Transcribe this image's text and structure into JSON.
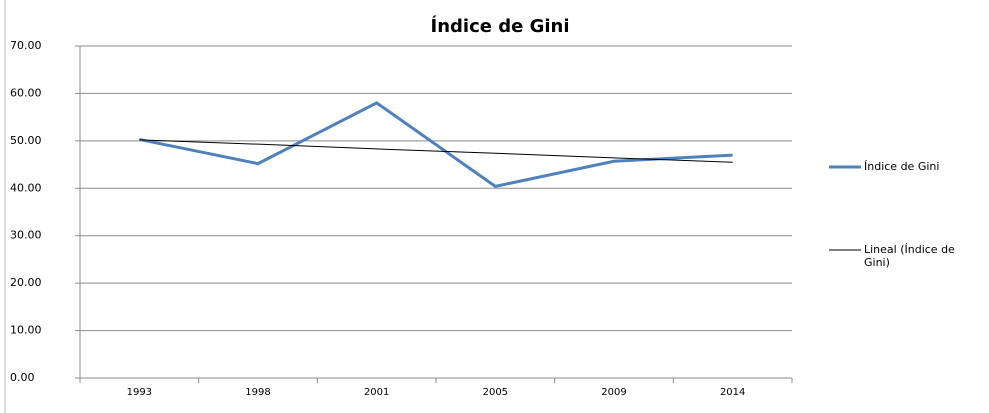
{
  "chart_data": {
    "type": "line",
    "title": "Índice de Gini",
    "categories": [
      "1993",
      "1998",
      "2001",
      "2005",
      "2009",
      "2014"
    ],
    "series": [
      {
        "name": "Índice de Gini",
        "color": "#4f81bd",
        "values": [
          50.3,
          45.2,
          58.0,
          40.4,
          45.7,
          47.0
        ]
      },
      {
        "name": "Lineal (Índice de Gini)",
        "color": "#000000",
        "values": [
          50.2,
          49.3,
          48.3,
          47.4,
          46.4,
          45.5
        ]
      }
    ],
    "ylim": [
      0,
      70
    ],
    "yticks": [
      {
        "value": 0,
        "label": "0.00"
      },
      {
        "value": 10,
        "label": "10.00"
      },
      {
        "value": 20,
        "label": "20.00"
      },
      {
        "value": 30,
        "label": "30.00"
      },
      {
        "value": 40,
        "label": "40.00"
      },
      {
        "value": 50,
        "label": "50.00"
      },
      {
        "value": 60,
        "label": "60.00"
      },
      {
        "value": 70,
        "label": "70.00"
      }
    ],
    "grid": true,
    "legend": "right"
  }
}
